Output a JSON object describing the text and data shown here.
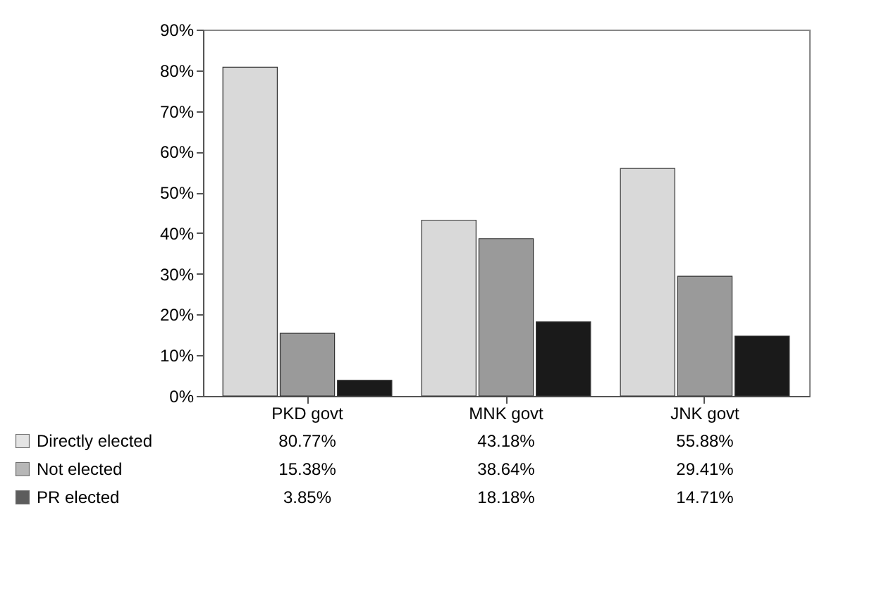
{
  "chart_data": {
    "type": "bar",
    "categories": [
      "PKD govt",
      "MNK govt",
      "JNK govt"
    ],
    "series": [
      {
        "name": "Directly elected",
        "color": "#d9d9d9",
        "values": [
          80.77,
          43.18,
          55.88
        ],
        "value_labels": [
          "80.77%",
          "43.18%",
          "55.88%"
        ]
      },
      {
        "name": "Not elected",
        "color": "#9a9a9a",
        "values": [
          15.38,
          38.64,
          29.41
        ],
        "value_labels": [
          "15.38%",
          "38.64%",
          "29.41%"
        ]
      },
      {
        "name": "PR elected",
        "color": "#1a1a1a",
        "values": [
          3.85,
          18.18,
          14.71
        ],
        "value_labels": [
          "3.85%",
          "18.18%",
          "14.71%"
        ]
      }
    ],
    "ylim": [
      0,
      90
    ],
    "yticks": [
      {
        "value": 0,
        "label": "0%"
      },
      {
        "value": 10,
        "label": "10%"
      },
      {
        "value": 20,
        "label": "20%"
      },
      {
        "value": 30,
        "label": "30%"
      },
      {
        "value": 40,
        "label": "40%"
      },
      {
        "value": 50,
        "label": "50%"
      },
      {
        "value": 60,
        "label": "60%"
      },
      {
        "value": 70,
        "label": "70%"
      },
      {
        "value": 80,
        "label": "80%"
      },
      {
        "value": 90,
        "label": "90%"
      }
    ],
    "grid": false,
    "legend": "bottom"
  }
}
